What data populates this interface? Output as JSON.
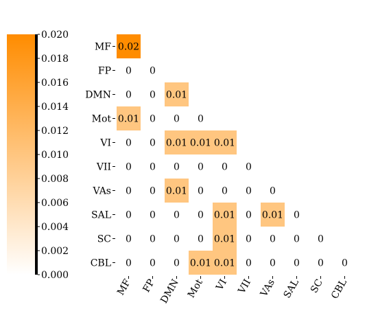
{
  "chart_data": {
    "type": "heatmap",
    "title": "",
    "xlabel": "",
    "ylabel": "",
    "rows": [
      "MF",
      "FP",
      "DMN",
      "Mot",
      "VI",
      "VII",
      "VAs",
      "SAL",
      "SC",
      "CBL"
    ],
    "cols": [
      "MF",
      "FP",
      "DMN",
      "Mot",
      "VI",
      "VII",
      "VAs",
      "SAL",
      "SC",
      "CBL"
    ],
    "lower_triangle": true,
    "values": [
      [
        0.02
      ],
      [
        0,
        0
      ],
      [
        0,
        0,
        0.01
      ],
      [
        0.01,
        0,
        0,
        0
      ],
      [
        0,
        0,
        0.01,
        0.01,
        0.01
      ],
      [
        0,
        0,
        0,
        0,
        0,
        0
      ],
      [
        0,
        0,
        0.01,
        0,
        0,
        0,
        0
      ],
      [
        0,
        0,
        0,
        0,
        0.01,
        0,
        0.01,
        0
      ],
      [
        0,
        0,
        0,
        0,
        0.01,
        0,
        0,
        0,
        0
      ],
      [
        0,
        0,
        0,
        0.01,
        0.01,
        0,
        0,
        0,
        0,
        0
      ]
    ],
    "labels": [
      [
        "0.02"
      ],
      [
        "0",
        "0"
      ],
      [
        "0",
        "0",
        "0.01"
      ],
      [
        "0.01",
        "0",
        "0",
        "0"
      ],
      [
        "0",
        "0",
        "0.01",
        "0.01",
        "0.01"
      ],
      [
        "0",
        "0",
        "0",
        "0",
        "0",
        "0"
      ],
      [
        "0",
        "0",
        "0.01",
        "0",
        "0",
        "0",
        "0"
      ],
      [
        "0",
        "0",
        "0",
        "0",
        "0.01",
        "0",
        "0.01",
        "0"
      ],
      [
        "0",
        "0",
        "0",
        "0",
        "0.01",
        "0",
        "0",
        "0",
        "0"
      ],
      [
        "0",
        "0",
        "0",
        "0.01",
        "0.01",
        "0",
        "0",
        "0",
        "0",
        "0"
      ]
    ],
    "colorbar": {
      "min": 0,
      "max": 0.02,
      "ticks": [
        "0.000",
        "0.002",
        "0.004",
        "0.006",
        "0.008",
        "0.010",
        "0.012",
        "0.014",
        "0.016",
        "0.018",
        "0.020"
      ],
      "color_low": "#ffffff",
      "color_high": "#ff8c00",
      "position": "left"
    },
    "grid": false
  }
}
